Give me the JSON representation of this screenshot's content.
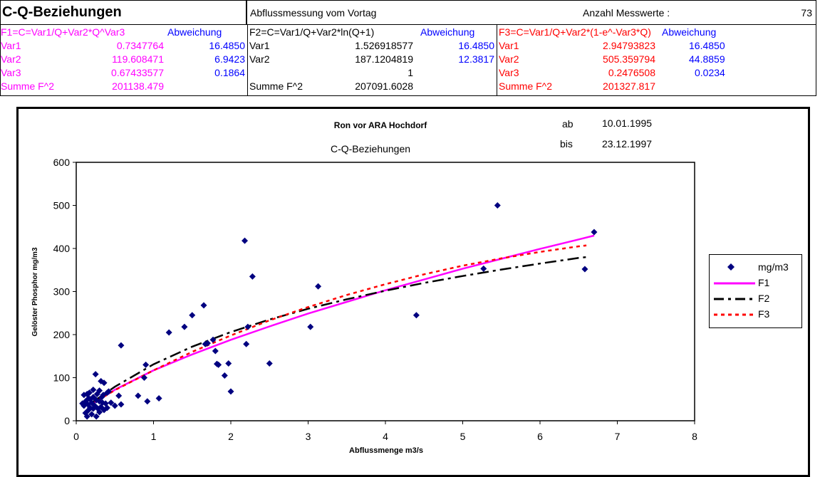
{
  "table": {
    "title": "C-Q-Beziehungen",
    "header_mid": "Abflussmessung vom Vortag",
    "count_label": "Anzahl Messwerte :",
    "count_value": "73",
    "f1": {
      "formula": "F1=C=Var1/Q+Var2*Q^Var3",
      "dev_label": "Abweichung",
      "rows": [
        {
          "label": "Var1",
          "value": "0.7347764",
          "dev": "16.4850"
        },
        {
          "label": "Var2",
          "value": "119.608471",
          "dev": "6.9423"
        },
        {
          "label": "Var3",
          "value": "0.67433577",
          "dev": "0.1864"
        },
        {
          "label": "Summe F^2",
          "value": "201138.479",
          "dev": ""
        }
      ]
    },
    "f2": {
      "formula": "F2=C=Var1/Q+Var2*ln(Q+1)",
      "dev_label": "Abweichung",
      "rows": [
        {
          "label": "Var1",
          "value": "1.526918577",
          "dev": "16.4850"
        },
        {
          "label": "Var2",
          "value": "187.1204819",
          "dev": "12.3817"
        },
        {
          "label": "",
          "value": "1",
          "dev": ""
        },
        {
          "label": "Summe F^2",
          "value": "207091.6028",
          "dev": ""
        }
      ]
    },
    "f3": {
      "formula": "F3=C=Var1/Q+Var2*(1-e^-Var3*Q)",
      "dev_label": "Abweichung",
      "rows": [
        {
          "label": "Var1",
          "value": "2.94793823",
          "dev": "16.4850"
        },
        {
          "label": "Var2",
          "value": "505.359794",
          "dev": "44.8859"
        },
        {
          "label": "Var3",
          "value": "0.2476508",
          "dev": "0.0234"
        },
        {
          "label": "Summe F^2",
          "value": "201327.817",
          "dev": ""
        }
      ]
    }
  },
  "chart_header": {
    "station": "Ron vor ARA Hochdorf",
    "subtitle": "C-Q-Beziehungen",
    "from_label": "ab",
    "from_date": "10.01.1995",
    "to_label": "bis",
    "to_date": "23.12.1997"
  },
  "colors": {
    "points": "#000080",
    "F1": "#ff00ff",
    "F2": "#000000",
    "F3": "#ff0000"
  },
  "chart_data": {
    "type": "scatter",
    "xlabel": "Abflussmenge m3/s",
    "ylabel": "Gelöster Phosphor mg/m3",
    "xlim": [
      0,
      8
    ],
    "ylim": [
      0,
      600
    ],
    "x_ticks": [
      0,
      1,
      2,
      3,
      4,
      5,
      6,
      7,
      8
    ],
    "y_ticks": [
      0,
      100,
      200,
      300,
      400,
      500,
      600
    ],
    "grid": false,
    "legend_position": "right",
    "series": [
      {
        "name": "mg/m3",
        "marker": "diamond",
        "points": [
          [
            0.08,
            40
          ],
          [
            0.1,
            35
          ],
          [
            0.1,
            60
          ],
          [
            0.12,
            18
          ],
          [
            0.12,
            45
          ],
          [
            0.14,
            10
          ],
          [
            0.15,
            38
          ],
          [
            0.16,
            25
          ],
          [
            0.17,
            65
          ],
          [
            0.18,
            50
          ],
          [
            0.18,
            30
          ],
          [
            0.2,
            42
          ],
          [
            0.2,
            15
          ],
          [
            0.22,
            72
          ],
          [
            0.22,
            55
          ],
          [
            0.24,
            35
          ],
          [
            0.25,
            108
          ],
          [
            0.26,
            48
          ],
          [
            0.27,
            62
          ],
          [
            0.28,
            28
          ],
          [
            0.3,
            70
          ],
          [
            0.3,
            45
          ],
          [
            0.32,
            92
          ],
          [
            0.32,
            32
          ],
          [
            0.33,
            55
          ],
          [
            0.35,
            60
          ],
          [
            0.36,
            88
          ],
          [
            0.36,
            25
          ],
          [
            0.38,
            40
          ],
          [
            0.4,
            65
          ],
          [
            0.45,
            42
          ],
          [
            0.5,
            35
          ],
          [
            0.55,
            58
          ],
          [
            0.58,
            38
          ],
          [
            0.58,
            175
          ],
          [
            0.8,
            58
          ],
          [
            0.88,
            100
          ],
          [
            0.9,
            130
          ],
          [
            0.92,
            45
          ],
          [
            1.07,
            52
          ],
          [
            1.2,
            205
          ],
          [
            1.4,
            218
          ],
          [
            1.5,
            245
          ],
          [
            1.65,
            268
          ],
          [
            1.67,
            178
          ],
          [
            1.7,
            180
          ],
          [
            1.77,
            188
          ],
          [
            1.8,
            162
          ],
          [
            1.82,
            132
          ],
          [
            1.84,
            130
          ],
          [
            1.92,
            105
          ],
          [
            1.97,
            133
          ],
          [
            2.0,
            68
          ],
          [
            2.18,
            418
          ],
          [
            2.2,
            178
          ],
          [
            2.22,
            218
          ],
          [
            2.28,
            335
          ],
          [
            2.5,
            133
          ],
          [
            3.03,
            218
          ],
          [
            3.13,
            312
          ],
          [
            4.4,
            245
          ],
          [
            5.27,
            353
          ],
          [
            5.45,
            500
          ],
          [
            6.58,
            352
          ],
          [
            6.7,
            438
          ],
          [
            0.14,
            62
          ],
          [
            0.26,
            10
          ],
          [
            0.34,
            42
          ],
          [
            0.42,
            68
          ],
          [
            0.22,
            28
          ],
          [
            0.3,
            20
          ],
          [
            0.16,
            52
          ],
          [
            0.4,
            30
          ]
        ]
      },
      {
        "name": "F1",
        "line": "solid",
        "points": [
          [
            0.2,
            38
          ],
          [
            0.5,
            72
          ],
          [
            1,
            117
          ],
          [
            1.5,
            154
          ],
          [
            2,
            188
          ],
          [
            2.5,
            219
          ],
          [
            3,
            249
          ],
          [
            3.5,
            276
          ],
          [
            4,
            303
          ],
          [
            4.5,
            328
          ],
          [
            5,
            353
          ],
          [
            5.5,
            376
          ],
          [
            6,
            399
          ],
          [
            6.5,
            421
          ],
          [
            6.7,
            430
          ]
        ]
      },
      {
        "name": "F2",
        "line": "dashdot",
        "points": [
          [
            0.2,
            42
          ],
          [
            0.5,
            79
          ],
          [
            1,
            131
          ],
          [
            1.5,
            172
          ],
          [
            2,
            206
          ],
          [
            2.5,
            235
          ],
          [
            3,
            260
          ],
          [
            3.5,
            282
          ],
          [
            4,
            302
          ],
          [
            4.5,
            320
          ],
          [
            5,
            336
          ],
          [
            5.5,
            351
          ],
          [
            6,
            365
          ],
          [
            6.5,
            378
          ],
          [
            6.6,
            380
          ]
        ]
      },
      {
        "name": "F3",
        "line": "dotted",
        "points": [
          [
            0.2,
            39
          ],
          [
            0.5,
            71
          ],
          [
            1,
            117
          ],
          [
            1.5,
            160
          ],
          [
            2,
            198
          ],
          [
            2.5,
            233
          ],
          [
            3,
            264
          ],
          [
            3.5,
            292
          ],
          [
            4,
            317
          ],
          [
            4.5,
            340
          ],
          [
            5,
            360
          ],
          [
            5.5,
            377
          ],
          [
            6,
            392
          ],
          [
            6.5,
            405
          ],
          [
            6.6,
            407
          ]
        ]
      }
    ]
  }
}
